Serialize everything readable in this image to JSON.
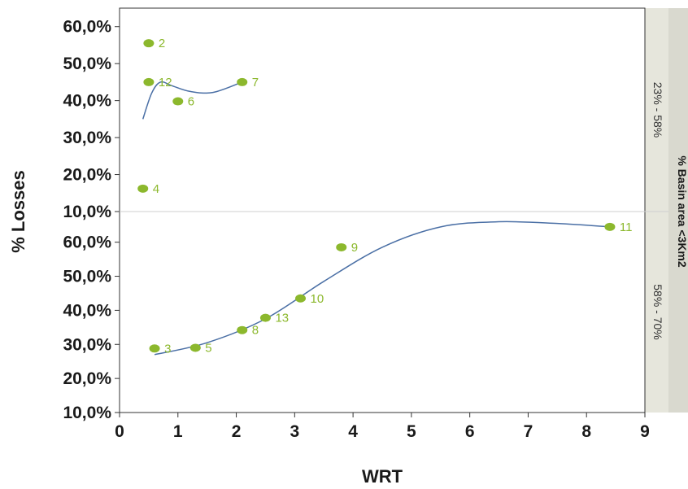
{
  "chart_data": {
    "type": "scatter",
    "xlabel": "WRT",
    "ylabel": "% Losses",
    "facet_title": "% Basin area <3Km2",
    "xlim": [
      0,
      9
    ],
    "x_ticks": [
      "0",
      "1",
      "2",
      "3",
      "4",
      "5",
      "6",
      "7",
      "8",
      "9"
    ],
    "grid": false,
    "colors": {
      "points": "#8cb82d",
      "fit_line": "#4a6fa5",
      "strip": "#e6e6dc"
    },
    "panels": [
      {
        "strip_label": "23% - 58%",
        "ylim": [
          10,
          65
        ],
        "y_ticks": [
          "10,0%",
          "20,0%",
          "30,0%",
          "40,0%",
          "50,0%",
          "60,0%"
        ],
        "points": [
          {
            "label": "2",
            "x": 0.5,
            "y": 55.5
          },
          {
            "label": "12",
            "x": 0.5,
            "y": 45
          },
          {
            "label": "7",
            "x": 2.1,
            "y": 45
          },
          {
            "label": "6",
            "x": 1.0,
            "y": 39.8
          },
          {
            "label": "4",
            "x": 0.4,
            "y": 16.2
          }
        ],
        "fit_curve": {
          "x": [
            0.4,
            0.55,
            0.7,
            0.9,
            1.2,
            1.6,
            2.1
          ],
          "y": [
            35,
            42,
            45,
            44,
            42.5,
            42.2,
            45
          ]
        }
      },
      {
        "strip_label": "58% - 70%",
        "ylim": [
          10,
          69
        ],
        "y_ticks": [
          "10,0%",
          "20,0%",
          "30,0%",
          "40,0%",
          "50,0%",
          "60,0%"
        ],
        "points": [
          {
            "label": "11",
            "x": 8.4,
            "y": 64.5
          },
          {
            "label": "9",
            "x": 3.8,
            "y": 58.5
          },
          {
            "label": "10",
            "x": 3.1,
            "y": 43.5
          },
          {
            "label": "13",
            "x": 2.5,
            "y": 37.8
          },
          {
            "label": "8",
            "x": 2.1,
            "y": 34.2
          },
          {
            "label": "5",
            "x": 1.3,
            "y": 29
          },
          {
            "label": "3",
            "x": 0.6,
            "y": 28.8
          }
        ],
        "fit_curve": {
          "x": [
            0.6,
            1.5,
            2.5,
            3.5,
            4.5,
            5.5,
            6.5,
            7.5,
            8.4
          ],
          "y": [
            27,
            30.5,
            37.5,
            48.5,
            58.5,
            64.5,
            66,
            65.5,
            64.5
          ]
        }
      }
    ]
  }
}
